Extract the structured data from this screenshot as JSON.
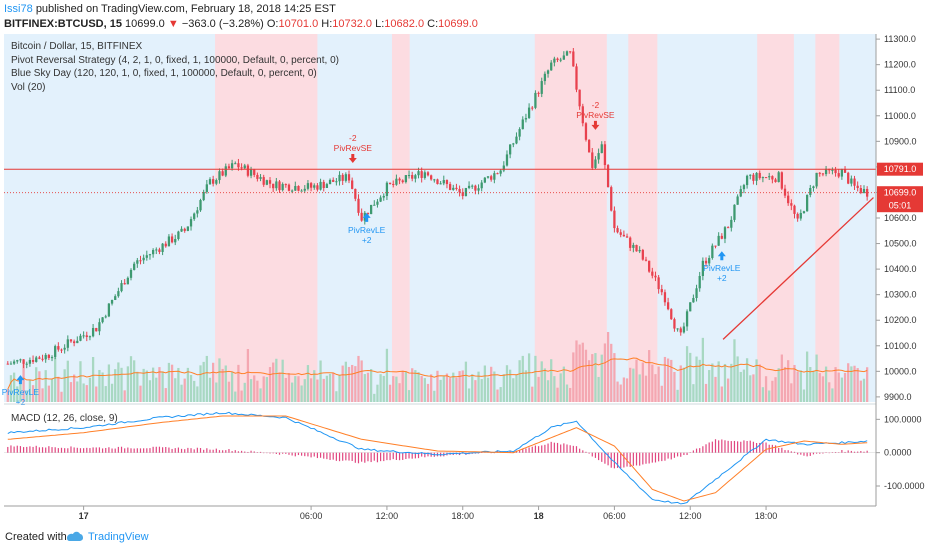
{
  "header": {
    "author": "Issi78",
    "published_text": "published on TradingView.com, February 18, 2018 14:25 EST",
    "symbol": "BITFINEX:BTCUSD, 15",
    "last": "10699.0",
    "change_arrow": "▼",
    "change": "−363.0 (−3.28%)",
    "o_label": "O:",
    "o_value": "10701.0",
    "h_label": "H:",
    "h_value": "10732.0",
    "l_label": "L:",
    "l_value": "10682.0",
    "c_label": "C:",
    "c_value": "10699.0"
  },
  "legend": {
    "line1": "Bitcoin / Dollar, 15, BITFINEX",
    "line2": "Pivot Reversal Strategy (4, 2, 1, 0, fixed, 1, 100000, Default, 0, percent, 0)",
    "line3": "Blue Sky Day (120, 120, 1, 0, fixed, 1, 100000, Default, 0, percent, 0)",
    "line4": "Vol (20)"
  },
  "macd_legend": "MACD (12, 26, close, 9)",
  "footer": {
    "created": "Created with",
    "brand": "TradingView"
  },
  "colors": {
    "up": "#3d9970",
    "down": "#e8414e",
    "blue_band": "#e3f1fc",
    "red_band": "#fcdce1",
    "macd": "#2196f3",
    "signal": "#ff7f27",
    "hist": "#e0467f",
    "hline": "#e53935",
    "trend": "#e53935",
    "vol_ma": "#ff7f27",
    "buy": "#2196f3",
    "sell": "#e53935"
  },
  "price_axis": {
    "ticks": [
      "11300.0",
      "11200.0",
      "11100.0",
      "11000.0",
      "10900.0",
      "10800.0",
      "10700.0",
      "10600.0",
      "10500.0",
      "10400.0",
      "10300.0",
      "10200.0",
      "10100.0",
      "10000.0",
      "9900.0"
    ],
    "hline_label": "10791.0",
    "last_label": "10699.0",
    "countdown": "05:01"
  },
  "macd_axis": {
    "ticks": [
      "100.0000",
      "0.0000",
      "-100.0000"
    ]
  },
  "time_axis": [
    {
      "label": "17",
      "bold": true,
      "t": 6
    },
    {
      "label": "06:00",
      "bold": false,
      "t": 24
    },
    {
      "label": "12:00",
      "bold": false,
      "t": 30
    },
    {
      "label": "18:00",
      "bold": false,
      "t": 36
    },
    {
      "label": "18",
      "bold": true,
      "t": 42
    },
    {
      "label": "06:00",
      "bold": false,
      "t": 48
    },
    {
      "label": "12:00",
      "bold": false,
      "t": 54
    },
    {
      "label": "18:00",
      "bold": false,
      "t": 60
    }
  ],
  "signals": [
    {
      "type": "buy",
      "name": "PivRevLE",
      "qty": "+2",
      "t": 1,
      "price": 9985
    },
    {
      "type": "sell",
      "name": "PivRevSE",
      "qty": "-2",
      "t": 27.3,
      "price": 10815
    },
    {
      "type": "buy",
      "name": "PivRevLE",
      "qty": "+2",
      "t": 28.4,
      "price": 10620
    },
    {
      "type": "sell",
      "name": "PivRevSE",
      "qty": "-2",
      "t": 46.5,
      "price": 10945
    },
    {
      "type": "buy",
      "name": "PivRevLE",
      "qty": "+2",
      "t": 56.5,
      "price": 10470
    }
  ],
  "chart_data": {
    "type": "candlestick",
    "symbol": "BITFINEX:BTCUSD",
    "interval": "15",
    "ylim": [
      9880,
      11320
    ],
    "x_hours": [
      -0.3,
      68.7
    ],
    "horizontal_level": 10791.0,
    "last_price": 10699.0,
    "trendline": [
      [
        56.6,
        10125
      ],
      [
        68.5,
        10680
      ]
    ],
    "key_points": [
      {
        "t": 0,
        "price": 10030
      },
      {
        "t": 3,
        "price": 10060
      },
      {
        "t": 7,
        "price": 10170
      },
      {
        "t": 10,
        "price": 10420
      },
      {
        "t": 14,
        "price": 10550
      },
      {
        "t": 16,
        "price": 10740
      },
      {
        "t": 18,
        "price": 10810
      },
      {
        "t": 21,
        "price": 10730
      },
      {
        "t": 24,
        "price": 10720
      },
      {
        "t": 27,
        "price": 10760
      },
      {
        "t": 28,
        "price": 10600
      },
      {
        "t": 30,
        "price": 10720
      },
      {
        "t": 33,
        "price": 10780
      },
      {
        "t": 36,
        "price": 10690
      },
      {
        "t": 39,
        "price": 10790
      },
      {
        "t": 41,
        "price": 11000
      },
      {
        "t": 43,
        "price": 11200
      },
      {
        "t": 44.5,
        "price": 11240
      },
      {
        "t": 46.2,
        "price": 10800
      },
      {
        "t": 47,
        "price": 10880
      },
      {
        "t": 48,
        "price": 10560
      },
      {
        "t": 50,
        "price": 10460
      },
      {
        "t": 52,
        "price": 10290
      },
      {
        "t": 53.2,
        "price": 10125
      },
      {
        "t": 55,
        "price": 10420
      },
      {
        "t": 57,
        "price": 10570
      },
      {
        "t": 58.5,
        "price": 10760
      },
      {
        "t": 61,
        "price": 10760
      },
      {
        "t": 62.5,
        "price": 10580
      },
      {
        "t": 64,
        "price": 10770
      },
      {
        "t": 66,
        "price": 10780
      },
      {
        "t": 67,
        "price": 10720
      },
      {
        "t": 68.1,
        "price": 10699
      }
    ],
    "red_bands_hours": [
      [
        16.4,
        24.5
      ],
      [
        30.4,
        31.8
      ],
      [
        41.7,
        47.4
      ],
      [
        49.1,
        51.4
      ],
      [
        59.3,
        62.2
      ],
      [
        63.9,
        65.8
      ]
    ],
    "macd": {
      "ylim": [
        -160,
        140
      ],
      "key_points": [
        {
          "t": 0,
          "macd": 60,
          "signal": 40
        },
        {
          "t": 6,
          "macd": 75,
          "signal": 60
        },
        {
          "t": 12,
          "macd": 105,
          "signal": 90
        },
        {
          "t": 17,
          "macd": 120,
          "signal": 110
        },
        {
          "t": 22,
          "macd": 105,
          "signal": 110
        },
        {
          "t": 28,
          "macd": 10,
          "signal": 40
        },
        {
          "t": 34,
          "macd": -5,
          "signal": 5
        },
        {
          "t": 40,
          "macd": 5,
          "signal": 0
        },
        {
          "t": 43,
          "macd": 75,
          "signal": 45
        },
        {
          "t": 45,
          "macd": 95,
          "signal": 75
        },
        {
          "t": 48,
          "macd": -30,
          "signal": 20
        },
        {
          "t": 51,
          "macd": -140,
          "signal": -110
        },
        {
          "t": 53.5,
          "macd": -155,
          "signal": -145
        },
        {
          "t": 56,
          "macd": -80,
          "signal": -120
        },
        {
          "t": 60,
          "macd": 40,
          "signal": 10
        },
        {
          "t": 63,
          "macd": 25,
          "signal": 35
        },
        {
          "t": 66,
          "macd": 30,
          "signal": 25
        },
        {
          "t": 68,
          "macd": 35,
          "signal": 30
        }
      ]
    }
  }
}
